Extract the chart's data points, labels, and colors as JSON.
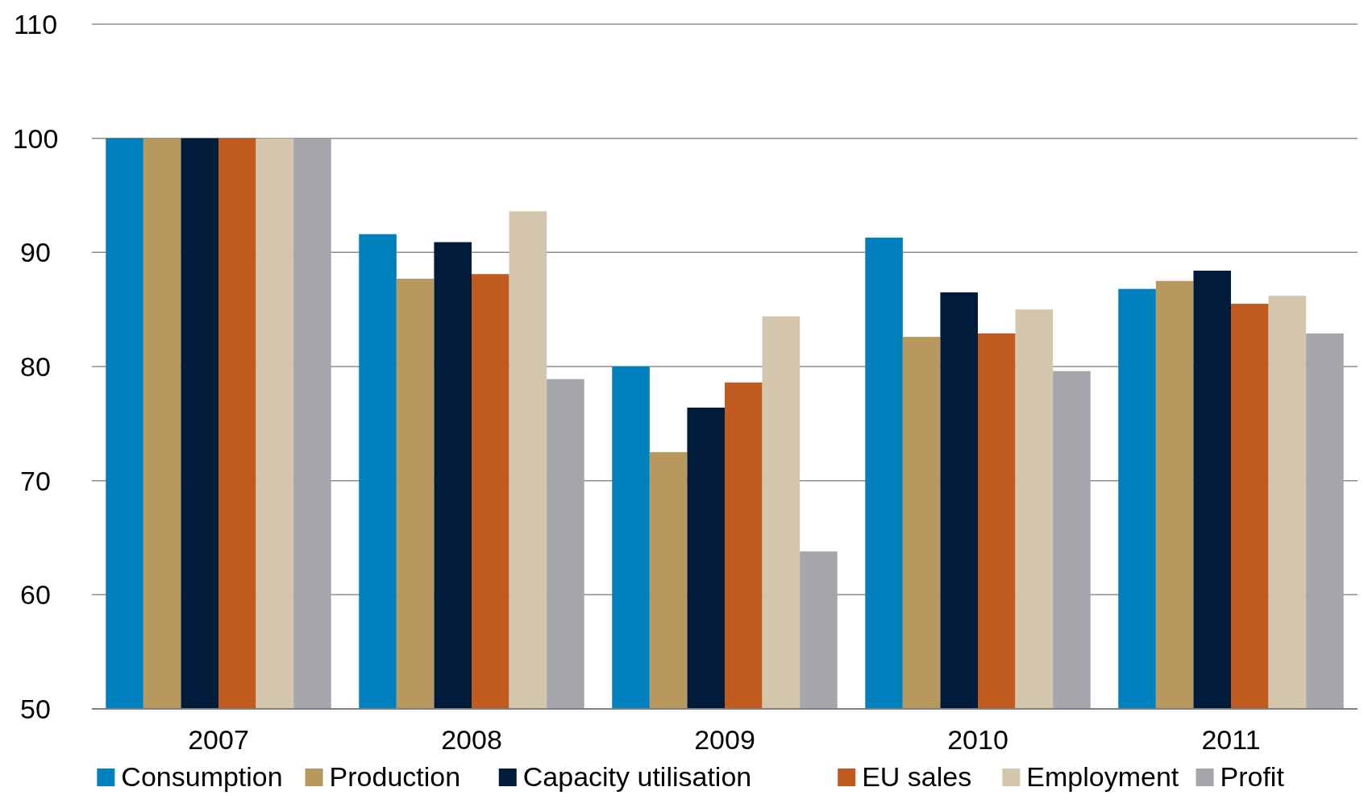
{
  "chart_data": {
    "type": "bar",
    "categories": [
      "2007",
      "2008",
      "2009",
      "2010",
      "2011"
    ],
    "series": [
      {
        "name": "Consumption",
        "color": "#0080bc",
        "values": [
          100,
          91.6,
          80.0,
          91.3,
          86.8
        ]
      },
      {
        "name": "Production",
        "color": "#b8985f",
        "values": [
          100,
          87.7,
          72.5,
          82.6,
          87.5
        ]
      },
      {
        "name": "Capacity utilisation",
        "color": "#001c3a",
        "values": [
          100,
          90.9,
          76.4,
          86.5,
          88.4
        ]
      },
      {
        "name": "EU sales",
        "color": "#c05a1e",
        "values": [
          100,
          88.1,
          78.6,
          82.9,
          85.5
        ]
      },
      {
        "name": "Employment",
        "color": "#d4c5ad",
        "values": [
          100,
          93.6,
          84.4,
          85.0,
          86.2
        ]
      },
      {
        "name": "Profit",
        "color": "#a5a6ab",
        "values": [
          100,
          78.9,
          63.8,
          79.6,
          82.9
        ]
      }
    ],
    "ylim": [
      50,
      110
    ],
    "yticks": [
      50,
      60,
      70,
      80,
      90,
      100,
      110
    ],
    "grid": "y",
    "legend": "bottom"
  }
}
